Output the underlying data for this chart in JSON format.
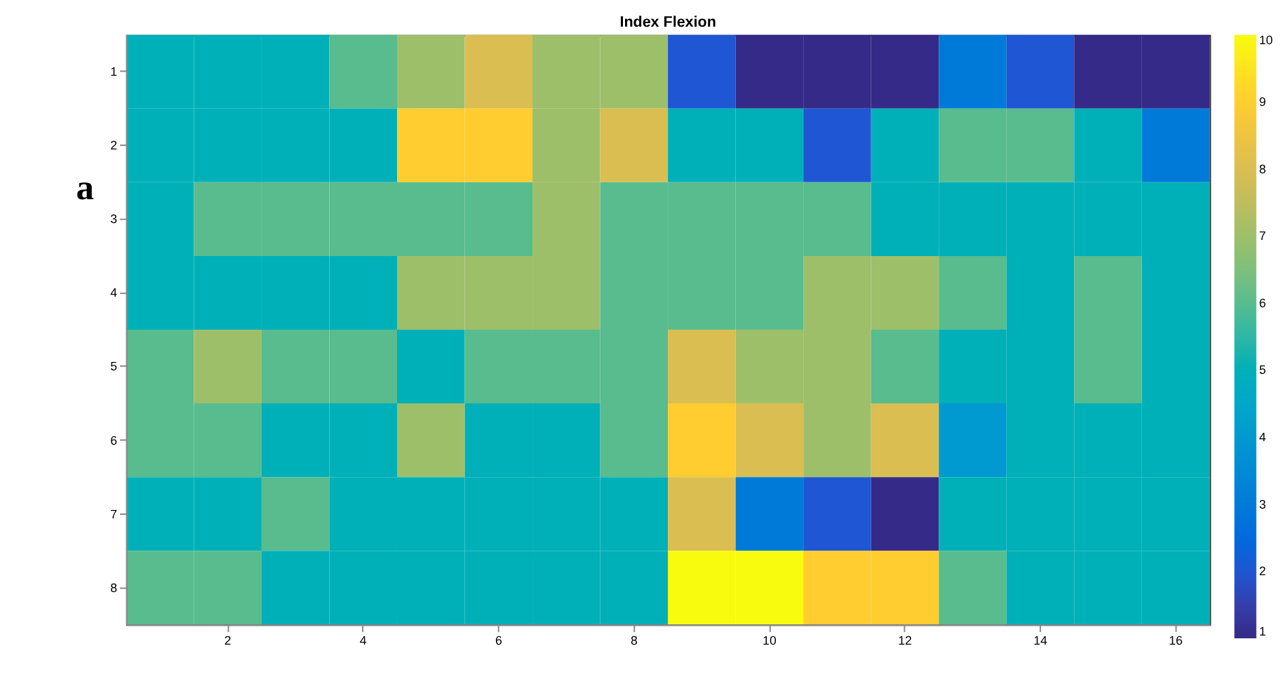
{
  "chart_data": {
    "type": "heatmap",
    "title": "Index Flexion",
    "categories": [
      null,
      "2",
      null,
      "4",
      null,
      "6",
      null,
      "8",
      null,
      "10",
      null,
      "12",
      null,
      "14",
      null,
      "16"
    ],
    "y_categories": [
      "1",
      "2",
      "3",
      "4",
      "5",
      "6",
      "7",
      "8"
    ],
    "cells": [
      [
        5,
        5,
        5,
        6,
        7,
        8,
        7,
        7,
        2,
        1,
        1,
        1,
        3,
        2,
        1,
        1
      ],
      [
        5,
        5,
        5,
        5,
        9,
        9,
        7,
        8,
        5,
        5,
        2,
        5,
        6,
        6,
        5,
        3
      ],
      [
        5,
        6,
        6,
        6,
        6,
        6,
        7,
        6,
        6,
        6,
        6,
        5,
        5,
        5,
        5,
        5
      ],
      [
        5,
        5,
        5,
        5,
        7,
        7,
        7,
        6,
        6,
        6,
        7,
        7,
        6,
        5,
        6,
        5
      ],
      [
        6,
        7,
        6,
        6,
        5,
        6,
        6,
        6,
        8,
        7,
        7,
        6,
        5,
        5,
        6,
        5
      ],
      [
        6,
        6,
        5,
        5,
        7,
        5,
        5,
        6,
        9,
        8,
        7,
        8,
        4,
        5,
        5,
        5
      ],
      [
        5,
        5,
        6,
        5,
        5,
        5,
        5,
        5,
        8,
        3,
        2,
        1,
        5,
        5,
        5,
        5
      ],
      [
        6,
        6,
        5,
        5,
        5,
        5,
        5,
        5,
        10,
        10,
        9,
        9,
        6,
        5,
        5,
        5
      ]
    ],
    "clim": [
      1,
      10
    ],
    "cticks": [
      1,
      2,
      3,
      4,
      5,
      6,
      7,
      8,
      9,
      10
    ],
    "annotations": [
      "a"
    ]
  }
}
